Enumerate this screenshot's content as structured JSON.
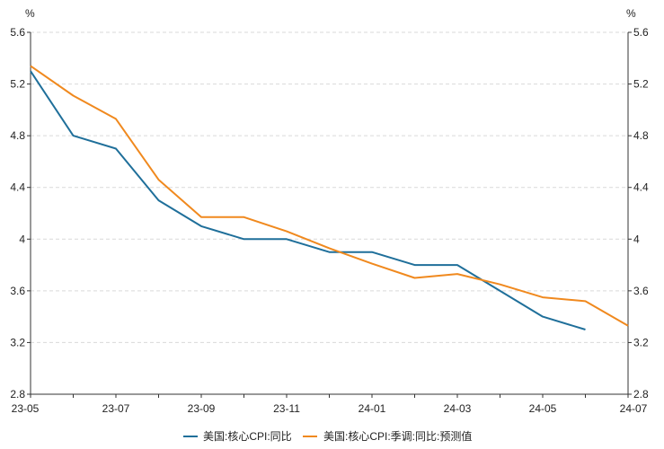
{
  "chart_data": {
    "type": "line",
    "y_unit_left": "%",
    "y_unit_right": "%",
    "ylim": [
      2.8,
      5.6
    ],
    "y_ticks": [
      2.8,
      3.2,
      3.6,
      4,
      4.4,
      4.8,
      5.2,
      5.6
    ],
    "y_tick_labels": [
      "2.8",
      "3.2",
      "3.6",
      "4",
      "4.4",
      "4.8",
      "5.2",
      "5.6"
    ],
    "x": [
      "23-05",
      "23-06",
      "23-07",
      "23-08",
      "23-09",
      "23-10",
      "23-11",
      "23-12",
      "24-01",
      "24-02",
      "24-03",
      "24-04",
      "24-05",
      "24-06",
      "24-07"
    ],
    "x_tick_labels": [
      "23-05",
      "23-07",
      "23-09",
      "23-11",
      "24-01",
      "24-03",
      "24-05",
      "24-07"
    ],
    "grid": true,
    "legend_position": "bottom",
    "series": [
      {
        "name": "美国:核心CPI:同比",
        "color": "#1f6f9a",
        "values": [
          5.3,
          4.8,
          4.7,
          4.3,
          4.1,
          4.0,
          4.0,
          3.9,
          3.9,
          3.8,
          3.8,
          3.6,
          3.4,
          3.3,
          null
        ]
      },
      {
        "name": "美国:核心CPI:季调:同比:预测值",
        "color": "#f0891e",
        "values": [
          5.34,
          5.11,
          4.93,
          4.46,
          4.17,
          4.17,
          4.06,
          3.93,
          3.81,
          3.7,
          3.73,
          3.65,
          3.55,
          3.52,
          3.33
        ]
      }
    ]
  }
}
